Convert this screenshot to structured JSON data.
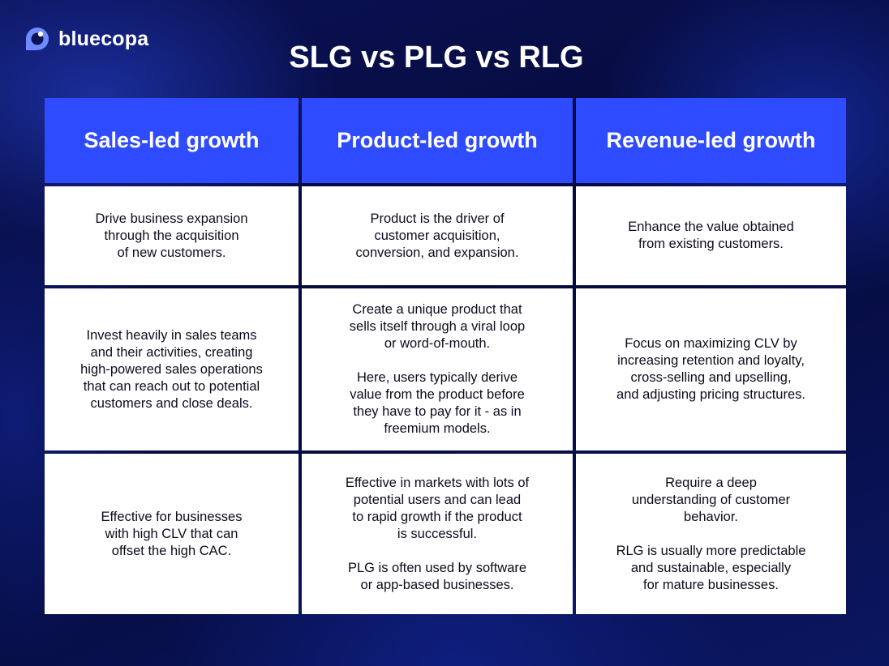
{
  "brand": {
    "name": "bluecopa",
    "logo_icon": "bluecopa-logo-icon"
  },
  "title": "SLG vs PLG vs RLG",
  "columns": [
    {
      "header": "Sales-led growth",
      "rows": [
        [
          "Drive business expansion\nthrough the acquisition\nof new customers."
        ],
        [
          "Invest heavily in sales teams\nand their activities, creating\nhigh-powered sales operations\nthat can reach out to potential\ncustomers and close deals."
        ],
        [
          "Effective for businesses\nwith high CLV that can\noffset the high CAC."
        ]
      ]
    },
    {
      "header": "Product-led growth",
      "rows": [
        [
          "Product is the driver of\ncustomer acquisition,\nconversion, and expansion."
        ],
        [
          "Create a unique product that\nsells itself through a viral loop\nor word-of-mouth.",
          "Here, users typically derive\nvalue from the product before\nthey have to pay for it - as in\nfreemium models."
        ],
        [
          "Effective in markets with lots of\npotential users and can lead\nto rapid growth if the product\nis successful.",
          "PLG is often used by software\nor app-based businesses."
        ]
      ]
    },
    {
      "header": "Revenue-led growth",
      "rows": [
        [
          "Enhance the value obtained\nfrom existing customers."
        ],
        [
          "Focus on maximizing CLV by\nincreasing retention and loyalty,\ncross-selling and upselling,\nand adjusting pricing structures."
        ],
        [
          "Require a deep\nunderstanding of customer\nbehavior.",
          "RLG is usually more predictable\nand sustainable, especially\nfor mature businesses."
        ]
      ]
    }
  ],
  "colors": {
    "header_bg": "#2f4bff",
    "cell_bg": "#ffffff",
    "text": "#0c0c1e",
    "logo_accent": "#6f8bff"
  }
}
